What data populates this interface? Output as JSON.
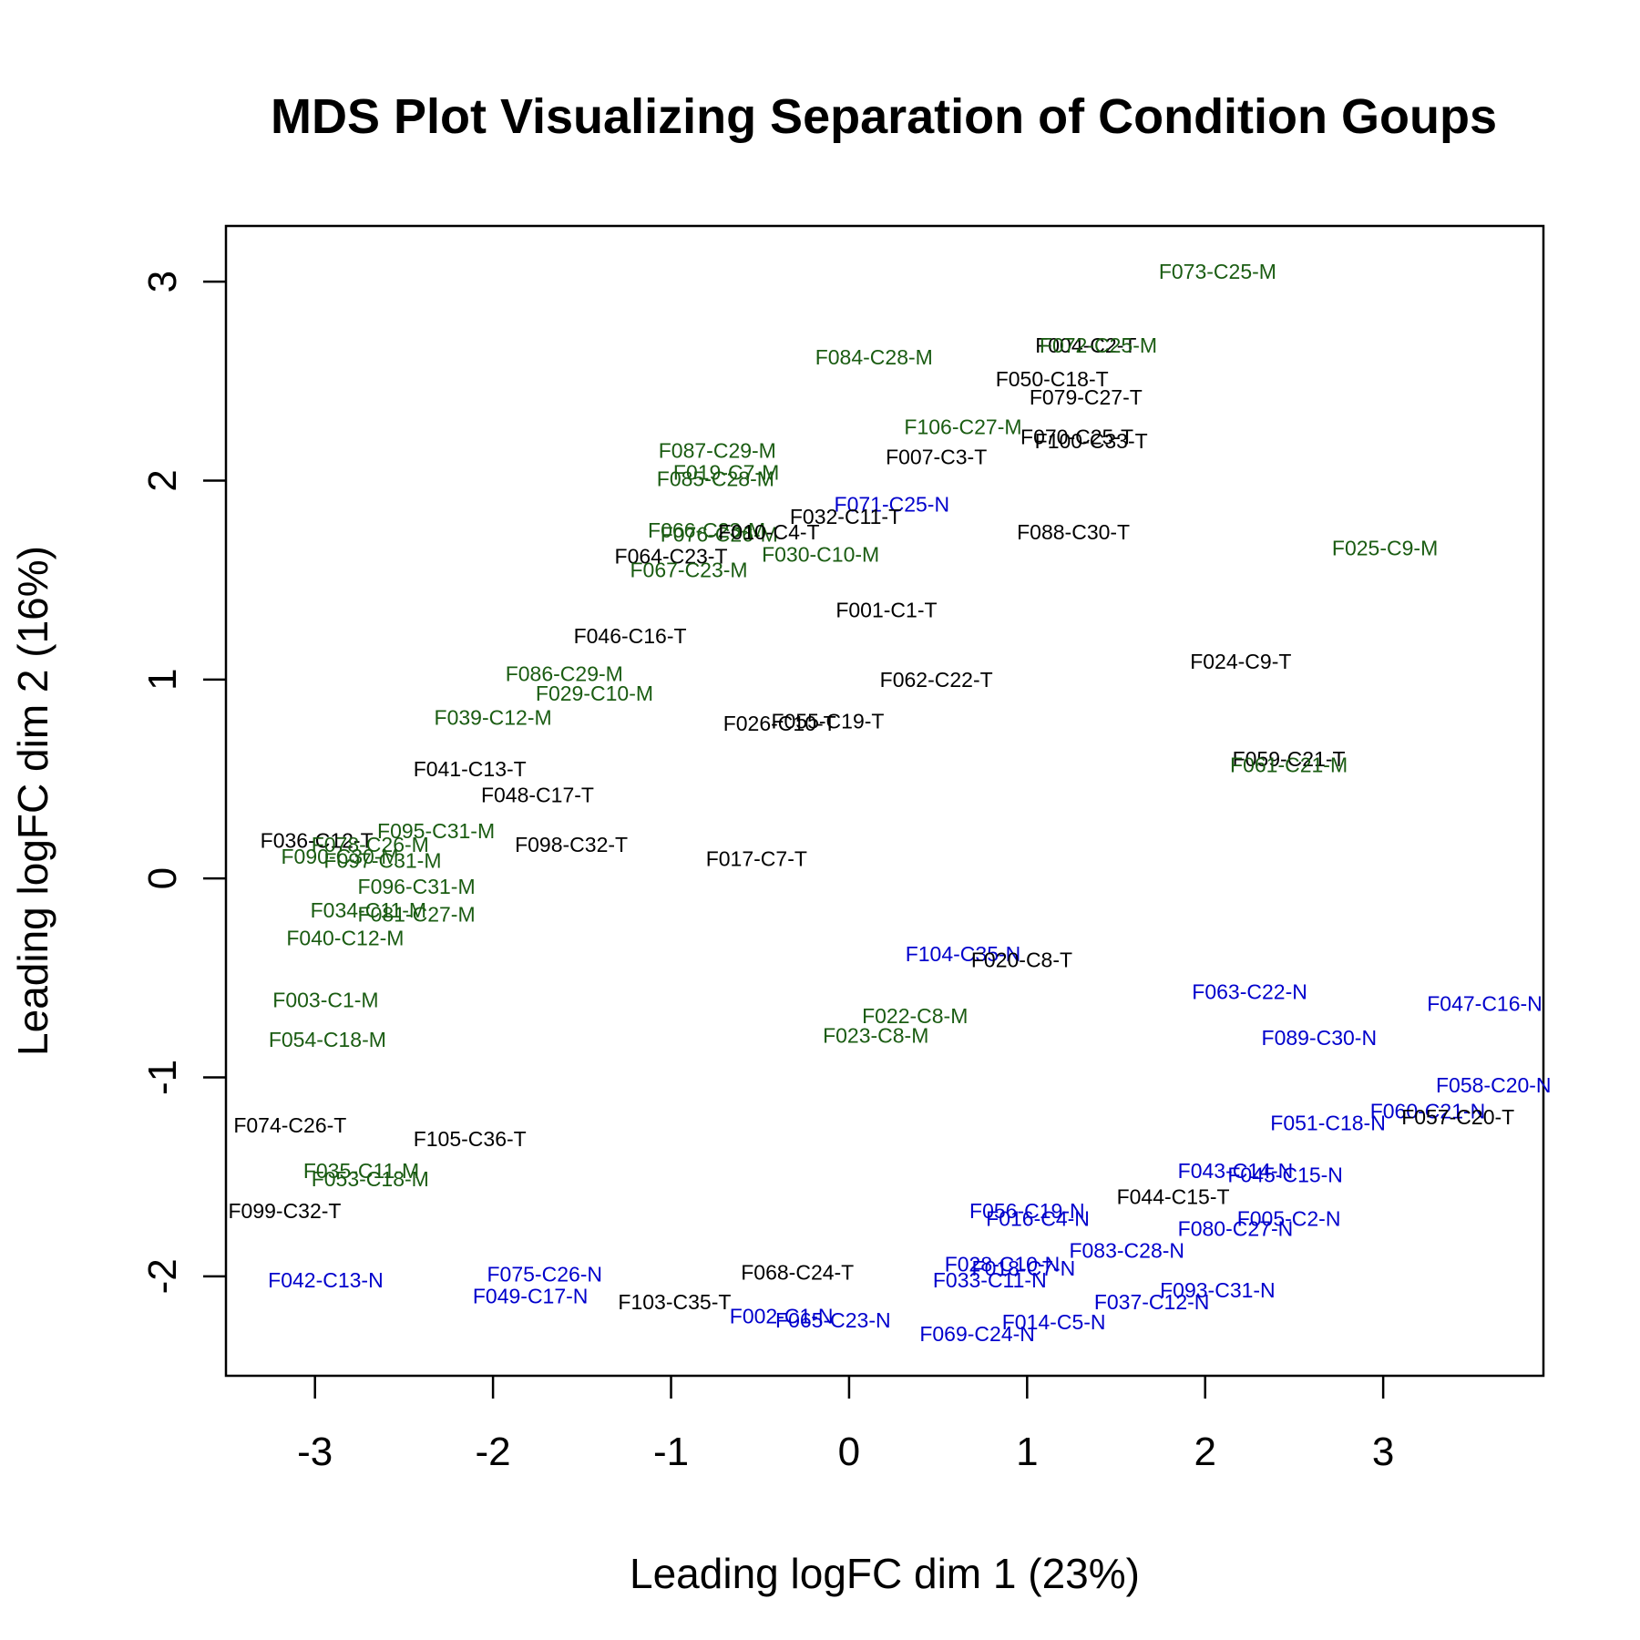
{
  "chart_data": {
    "type": "scatter",
    "title": "MDS Plot Visualizing Separation of Condition Goups",
    "xlabel": "Leading logFC dim 1 (23%)",
    "ylabel": "Leading logFC dim 2 (16%)",
    "xlim": [
      -3.5,
      3.9
    ],
    "ylim": [
      -2.5,
      3.28
    ],
    "xticks": [
      -3,
      -2,
      -1,
      0,
      1,
      2,
      3
    ],
    "yticks": [
      -2,
      -1,
      0,
      1,
      2,
      3
    ],
    "grid": false,
    "colors": {
      "T": "#000000",
      "M": "#1a5c12",
      "N": "#0000cc"
    },
    "points": [
      {
        "label": "F073-C25-M",
        "x": 2.07,
        "y": 3.05,
        "group": "M"
      },
      {
        "label": "F004-C2-T",
        "x": 1.33,
        "y": 2.68,
        "group": "T"
      },
      {
        "label": "F072-C25-M",
        "x": 1.4,
        "y": 2.68,
        "group": "M"
      },
      {
        "label": "F084-C28-M",
        "x": 0.14,
        "y": 2.62,
        "group": "M"
      },
      {
        "label": "F050-C18-T",
        "x": 1.14,
        "y": 2.51,
        "group": "T"
      },
      {
        "label": "F079-C27-T",
        "x": 1.33,
        "y": 2.42,
        "group": "T"
      },
      {
        "label": "F106-C27-M",
        "x": 0.64,
        "y": 2.27,
        "group": "M"
      },
      {
        "label": "F070-C25-T",
        "x": 1.28,
        "y": 2.22,
        "group": "T"
      },
      {
        "label": "F100-C33-T",
        "x": 1.36,
        "y": 2.2,
        "group": "T"
      },
      {
        "label": "F007-C3-T",
        "x": 0.49,
        "y": 2.12,
        "group": "T"
      },
      {
        "label": "F087-C29-M",
        "x": -0.74,
        "y": 2.15,
        "group": "M"
      },
      {
        "label": "F019-C7-M",
        "x": -0.69,
        "y": 2.04,
        "group": "M"
      },
      {
        "label": "F085-C28-M",
        "x": -0.75,
        "y": 2.01,
        "group": "M"
      },
      {
        "label": "F071-C25-N",
        "x": 0.24,
        "y": 1.88,
        "group": "N"
      },
      {
        "label": "F032-C11-T",
        "x": -0.02,
        "y": 1.82,
        "group": "T"
      },
      {
        "label": "F088-C30-T",
        "x": 1.26,
        "y": 1.74,
        "group": "T"
      },
      {
        "label": "F066-C23-M",
        "x": -0.8,
        "y": 1.75,
        "group": "M"
      },
      {
        "label": "F076-C26-M",
        "x": -0.73,
        "y": 1.73,
        "group": "M"
      },
      {
        "label": "F010-C4-T",
        "x": -0.45,
        "y": 1.74,
        "group": "T"
      },
      {
        "label": "F025-C9-M",
        "x": 3.01,
        "y": 1.66,
        "group": "M"
      },
      {
        "label": "F030-C10-M",
        "x": -0.16,
        "y": 1.63,
        "group": "M"
      },
      {
        "label": "F064-C23-T",
        "x": -1.0,
        "y": 1.62,
        "group": "T"
      },
      {
        "label": "F067-C23-M",
        "x": -0.9,
        "y": 1.55,
        "group": "M"
      },
      {
        "label": "F001-C1-T",
        "x": 0.21,
        "y": 1.35,
        "group": "T"
      },
      {
        "label": "F046-C16-T",
        "x": -1.23,
        "y": 1.22,
        "group": "T"
      },
      {
        "label": "F024-C9-T",
        "x": 2.2,
        "y": 1.09,
        "group": "T"
      },
      {
        "label": "F062-C22-T",
        "x": 0.49,
        "y": 1.0,
        "group": "T"
      },
      {
        "label": "F086-C29-M",
        "x": -1.6,
        "y": 1.03,
        "group": "M"
      },
      {
        "label": "F029-C10-M",
        "x": -1.43,
        "y": 0.93,
        "group": "M"
      },
      {
        "label": "F039-C12-M",
        "x": -2.0,
        "y": 0.81,
        "group": "M"
      },
      {
        "label": "F026-C10-T",
        "x": -0.39,
        "y": 0.78,
        "group": "T"
      },
      {
        "label": "F055-C19-T",
        "x": -0.12,
        "y": 0.79,
        "group": "T"
      },
      {
        "label": "F059-C21-T",
        "x": 2.47,
        "y": 0.6,
        "group": "T"
      },
      {
        "label": "F061-C21-M",
        "x": 2.47,
        "y": 0.57,
        "group": "M"
      },
      {
        "label": "F041-C13-T",
        "x": -2.13,
        "y": 0.55,
        "group": "T"
      },
      {
        "label": "F048-C17-T",
        "x": -1.75,
        "y": 0.42,
        "group": "T"
      },
      {
        "label": "F095-C31-M",
        "x": -2.32,
        "y": 0.24,
        "group": "M"
      },
      {
        "label": "F036-C12-T",
        "x": -2.99,
        "y": 0.19,
        "group": "T"
      },
      {
        "label": "F078-C26-M",
        "x": -2.69,
        "y": 0.17,
        "group": "M"
      },
      {
        "label": "F098-C32-T",
        "x": -1.56,
        "y": 0.17,
        "group": "T"
      },
      {
        "label": "F090-C30-M",
        "x": -2.86,
        "y": 0.11,
        "group": "M"
      },
      {
        "label": "F097-C31-M",
        "x": -2.62,
        "y": 0.09,
        "group": "M"
      },
      {
        "label": "F017-C7-T",
        "x": -0.52,
        "y": 0.1,
        "group": "T"
      },
      {
        "label": "F096-C31-M",
        "x": -2.43,
        "y": -0.04,
        "group": "M"
      },
      {
        "label": "F034-C11-M",
        "x": -2.7,
        "y": -0.16,
        "group": "M"
      },
      {
        "label": "F081-C27-M",
        "x": -2.43,
        "y": -0.18,
        "group": "M"
      },
      {
        "label": "F040-C12-M",
        "x": -2.83,
        "y": -0.3,
        "group": "M"
      },
      {
        "label": "F104-C35-N",
        "x": 0.64,
        "y": -0.38,
        "group": "N"
      },
      {
        "label": "F020-C8-T",
        "x": 0.97,
        "y": -0.41,
        "group": "T"
      },
      {
        "label": "F063-C22-N",
        "x": 2.25,
        "y": -0.57,
        "group": "N"
      },
      {
        "label": "F047-C16-N",
        "x": 3.57,
        "y": -0.63,
        "group": "N"
      },
      {
        "label": "F003-C1-M",
        "x": -2.94,
        "y": -0.61,
        "group": "M"
      },
      {
        "label": "F022-C8-M",
        "x": 0.37,
        "y": -0.69,
        "group": "M"
      },
      {
        "label": "F023-C8-M",
        "x": 0.15,
        "y": -0.79,
        "group": "M"
      },
      {
        "label": "F089-C30-N",
        "x": 2.64,
        "y": -0.8,
        "group": "N"
      },
      {
        "label": "F054-C18-M",
        "x": -2.93,
        "y": -0.81,
        "group": "M"
      },
      {
        "label": "F058-C20-N",
        "x": 3.62,
        "y": -1.04,
        "group": "N"
      },
      {
        "label": "F060-C21-N",
        "x": 3.25,
        "y": -1.17,
        "group": "N"
      },
      {
        "label": "F057-C20-T",
        "x": 3.42,
        "y": -1.2,
        "group": "T"
      },
      {
        "label": "F051-C18-N",
        "x": 2.69,
        "y": -1.23,
        "group": "N"
      },
      {
        "label": "F074-C26-T",
        "x": -3.14,
        "y": -1.24,
        "group": "T"
      },
      {
        "label": "F105-C36-T",
        "x": -2.13,
        "y": -1.31,
        "group": "T"
      },
      {
        "label": "F035-C11-M",
        "x": -2.74,
        "y": -1.47,
        "group": "M"
      },
      {
        "label": "F053-C18-M",
        "x": -2.69,
        "y": -1.51,
        "group": "M"
      },
      {
        "label": "F043-C14-N",
        "x": 2.17,
        "y": -1.47,
        "group": "N"
      },
      {
        "label": "F045-C15-N",
        "x": 2.45,
        "y": -1.49,
        "group": "N"
      },
      {
        "label": "F044-C15-T",
        "x": 1.82,
        "y": -1.6,
        "group": "T"
      },
      {
        "label": "F099-C32-T",
        "x": -3.17,
        "y": -1.67,
        "group": "T"
      },
      {
        "label": "F056-C19-N",
        "x": 1.0,
        "y": -1.67,
        "group": "N"
      },
      {
        "label": "F016-C4-N",
        "x": 1.06,
        "y": -1.71,
        "group": "N"
      },
      {
        "label": "F005-C2-N",
        "x": 2.47,
        "y": -1.71,
        "group": "N"
      },
      {
        "label": "F080-C27-N",
        "x": 2.17,
        "y": -1.76,
        "group": "N"
      },
      {
        "label": "F083-C28-N",
        "x": 1.56,
        "y": -1.87,
        "group": "N"
      },
      {
        "label": "F028-C10-N",
        "x": 0.86,
        "y": -1.94,
        "group": "N"
      },
      {
        "label": "F018-C7-N",
        "x": 0.98,
        "y": -1.96,
        "group": "N"
      },
      {
        "label": "F068-C24-T",
        "x": -0.29,
        "y": -1.98,
        "group": "T"
      },
      {
        "label": "F042-C13-N",
        "x": -2.94,
        "y": -2.02,
        "group": "N"
      },
      {
        "label": "F075-C26-N",
        "x": -1.71,
        "y": -1.99,
        "group": "N"
      },
      {
        "label": "F033-C11-N",
        "x": 0.79,
        "y": -2.02,
        "group": "N"
      },
      {
        "label": "F049-C17-N",
        "x": -1.79,
        "y": -2.1,
        "group": "N"
      },
      {
        "label": "F093-C31-N",
        "x": 2.07,
        "y": -2.07,
        "group": "N"
      },
      {
        "label": "F103-C35-T",
        "x": -0.98,
        "y": -2.13,
        "group": "T"
      },
      {
        "label": "F037-C12-N",
        "x": 1.7,
        "y": -2.13,
        "group": "N"
      },
      {
        "label": "F002-C1-N",
        "x": -0.38,
        "y": -2.2,
        "group": "N"
      },
      {
        "label": "F065-C23-N",
        "x": -0.09,
        "y": -2.22,
        "group": "N"
      },
      {
        "label": "F014-C5-N",
        "x": 1.15,
        "y": -2.23,
        "group": "N"
      },
      {
        "label": "F069-C24-N",
        "x": 0.72,
        "y": -2.29,
        "group": "N"
      }
    ]
  }
}
